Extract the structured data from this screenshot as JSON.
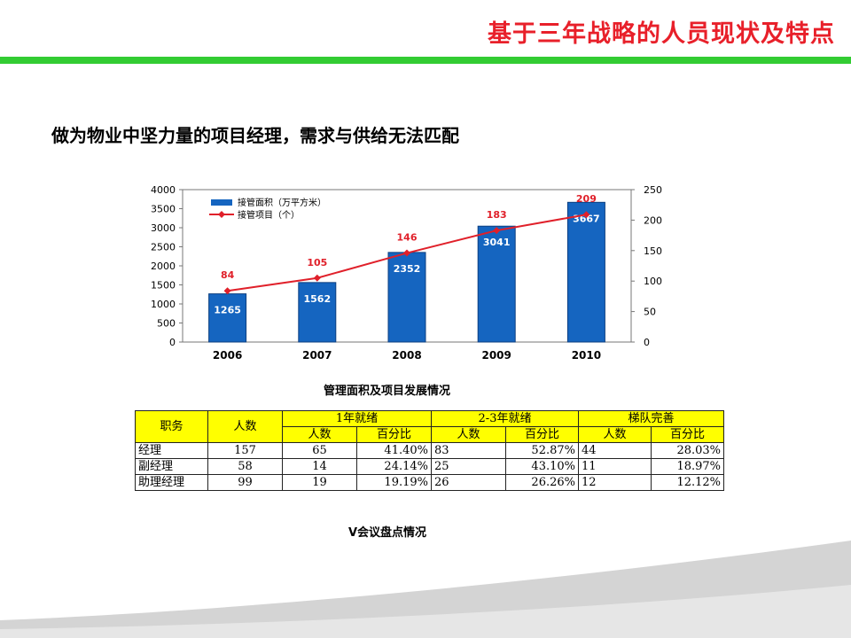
{
  "slide": {
    "title": "基于三年战略的人员现状及特点",
    "headline": "做为物业中坚力量的项目经理，需求与供给无法匹配",
    "chart_caption": "管理面积及项目发展情况",
    "table_caption": "V会议盘点情况",
    "colors": {
      "title": "#e8202a",
      "rule": "#33cc33",
      "bar": "#1565c0",
      "line": "#e0202a",
      "header_fill": "#ffff00"
    }
  },
  "chart_data": {
    "type": "bar",
    "categories": [
      "2006",
      "2007",
      "2008",
      "2009",
      "2010"
    ],
    "series": [
      {
        "name": "接管面积（万平方米）",
        "type": "bar",
        "axis": "left",
        "values": [
          1265,
          1562,
          2352,
          3041,
          3667
        ]
      },
      {
        "name": "接管项目（个）",
        "type": "line",
        "axis": "right",
        "values": [
          84,
          105,
          146,
          183,
          209
        ]
      }
    ],
    "y_left": {
      "min": 0,
      "max": 4000,
      "ticks": [
        0,
        500,
        1000,
        1500,
        2000,
        2500,
        3000,
        3500,
        4000
      ]
    },
    "y_right": {
      "min": 0,
      "max": 250,
      "ticks": [
        0,
        50,
        100,
        150,
        200,
        250
      ]
    },
    "line_labels": [
      "84",
      "105",
      "146",
      "183",
      "209"
    ],
    "legend_position": "top-left",
    "grid": false
  },
  "table": {
    "header_top": [
      "职务",
      "人数",
      "1年就绪",
      "2-3年就绪",
      "梯队完善"
    ],
    "header_sub": [
      "人数",
      "百分比",
      "人数",
      "百分比",
      "人数",
      "百分比"
    ],
    "rows": [
      [
        "经理",
        "157",
        "65",
        "41.40%",
        "83",
        "52.87%",
        "44",
        "28.03%"
      ],
      [
        "副经理",
        "58",
        "14",
        "24.14%",
        "25",
        "43.10%",
        "11",
        "18.97%"
      ],
      [
        "助理经理",
        "99",
        "19",
        "19.19%",
        "26",
        "26.26%",
        "12",
        "12.12%"
      ]
    ]
  }
}
